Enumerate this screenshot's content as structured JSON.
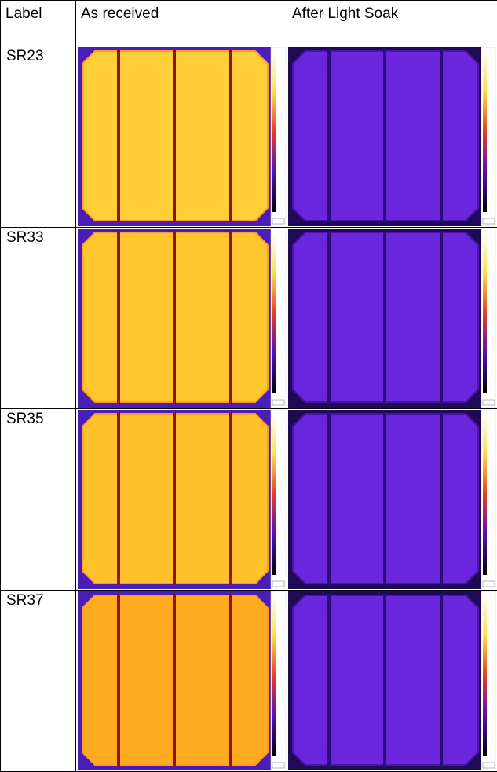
{
  "table": {
    "header": [
      "Label",
      "As received",
      "After Light Soak"
    ],
    "rows": [
      [
        "SR23"
      ],
      [
        "SR33"
      ],
      [
        "SR35"
      ],
      [
        "SR37"
      ]
    ]
  }
}
